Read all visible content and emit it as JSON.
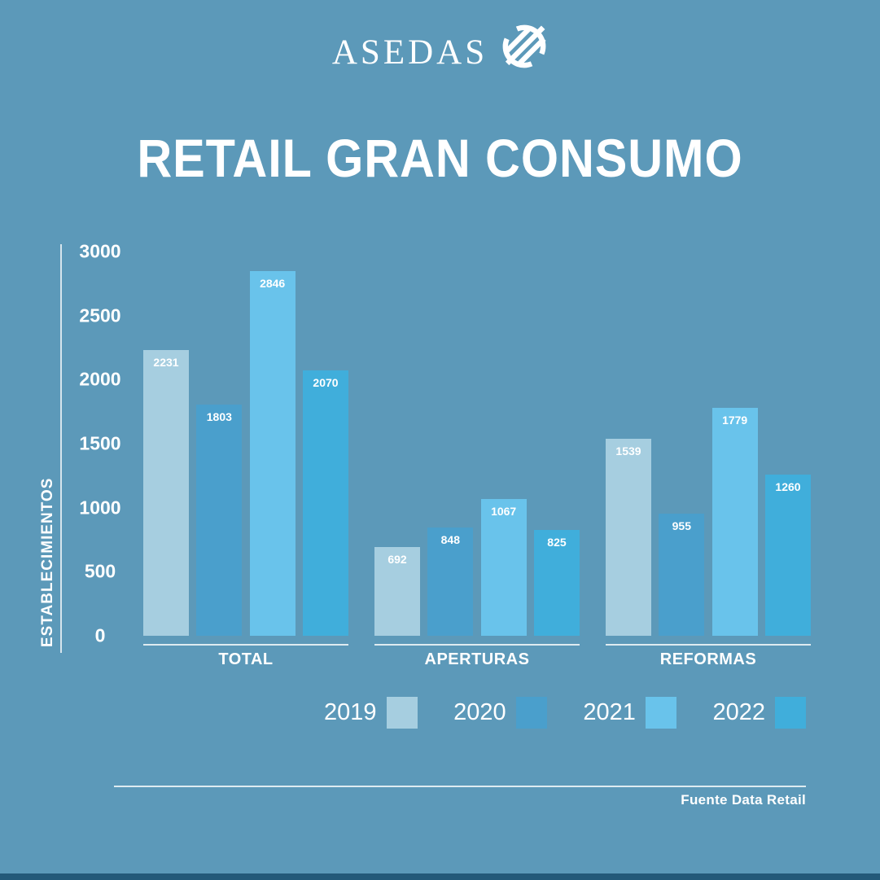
{
  "logo": {
    "text": "ASEDAS",
    "icon": "asedas-striped-circle"
  },
  "title": "RETAIL GRAN CONSUMO",
  "chart_data": {
    "type": "bar",
    "title": "RETAIL GRAN CONSUMO",
    "ylabel": "ESTABLECIMIENTOS",
    "xlabel": "",
    "categories": [
      "TOTAL",
      "APERTURAS",
      "REFORMAS"
    ],
    "series": [
      {
        "name": "2019",
        "color": "#A6CEE0",
        "values": [
          2231,
          692,
          1539
        ]
      },
      {
        "name": "2020",
        "color": "#4A9FCC",
        "values": [
          1803,
          848,
          955
        ]
      },
      {
        "name": "2021",
        "color": "#69C3EB",
        "values": [
          2846,
          1067,
          1779
        ]
      },
      {
        "name": "2022",
        "color": "#40AEDB",
        "values": [
          2070,
          825,
          1260
        ]
      }
    ],
    "yticks": [
      0,
      500,
      1000,
      1500,
      2000,
      2500,
      3000
    ],
    "ylim": [
      0,
      3000
    ],
    "grid": false,
    "value_labels": true,
    "legend_position": "bottom"
  },
  "footer": {
    "source": "Fuente Data Retail"
  },
  "colors": {
    "background": "#5C99B9",
    "bottom_strip": "#235979",
    "text": "#FFFFFF",
    "axis_line": "rgba(255,255,255,0.78)"
  }
}
